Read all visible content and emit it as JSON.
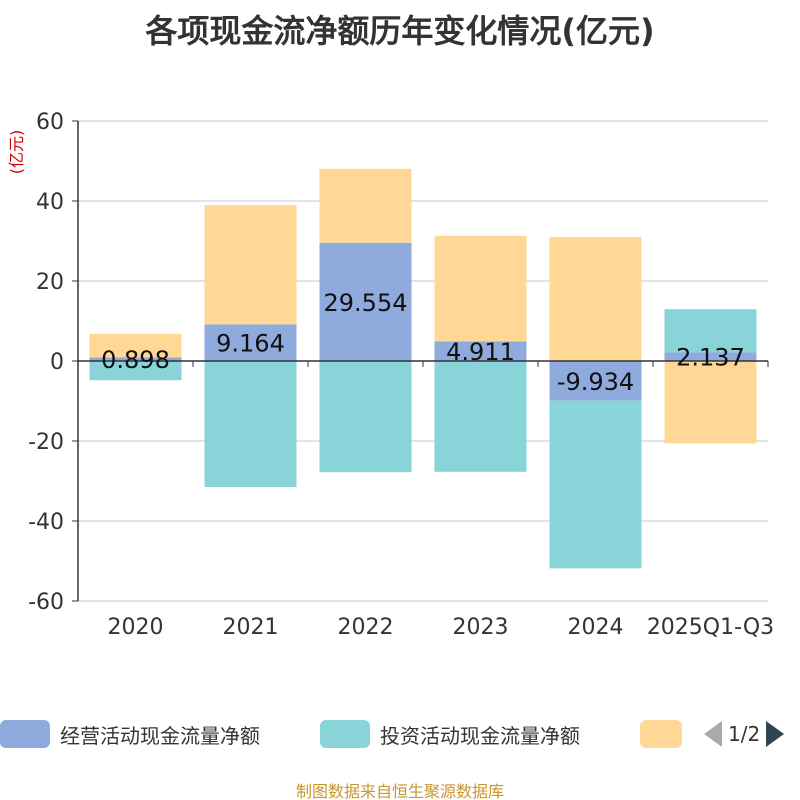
{
  "title": "各项现金流净额历年变化情况(亿元)",
  "unit_label": "(亿元)",
  "source": "制图数据来自恒生聚源数据库",
  "legend": {
    "items": [
      {
        "name": "经营活动现金流量净额",
        "color": "#8faadc"
      },
      {
        "name": "投资活动现金流量净额",
        "color": "#88d4d8"
      },
      {
        "name": "",
        "color": "#fed894"
      }
    ],
    "page": "1/2"
  },
  "chart_data": {
    "type": "bar",
    "stacked": true,
    "categories": [
      "2020",
      "2021",
      "2022",
      "2023",
      "2024",
      "2025Q1-Q3"
    ],
    "ylim": [
      -60,
      60
    ],
    "yticks": [
      60,
      40,
      20,
      0,
      -20,
      -40,
      -60
    ],
    "series": [
      {
        "name": "经营活动现金流量净额",
        "color": "#8faadc",
        "values": [
          0.898,
          9.164,
          29.554,
          4.911,
          -9.934,
          2.137
        ],
        "labels": [
          "0.898",
          "9.164",
          "29.554",
          "4.911",
          "-9.934",
          "2.137"
        ]
      },
      {
        "name": "投资活动现金流量净额",
        "color": "#88d4d8",
        "values": [
          -4.8,
          -31.5,
          -27.8,
          -27.7,
          -41.9,
          10.8
        ]
      },
      {
        "name": "",
        "color": "#fed894",
        "values": [
          5.9,
          29.8,
          18.5,
          26.4,
          31.0,
          -20.6
        ]
      }
    ]
  }
}
